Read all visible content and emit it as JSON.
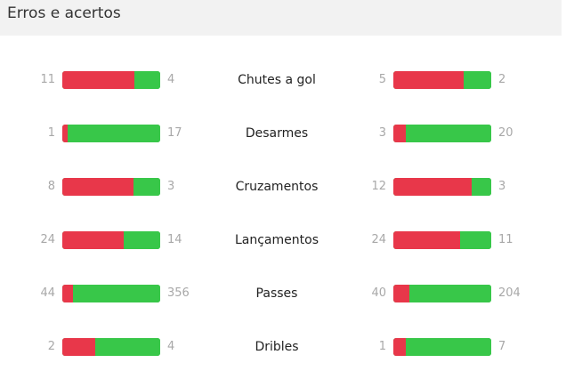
{
  "header": {
    "title": "Erros e acertos"
  },
  "colors": {
    "error": "#e8374a",
    "success": "#38c749"
  },
  "stats": [
    {
      "label": "Chutes a gol",
      "left": {
        "errors": "11",
        "hits": "4"
      },
      "right": {
        "errors": "5",
        "hits": "2"
      }
    },
    {
      "label": "Desarmes",
      "left": {
        "errors": "1",
        "hits": "17"
      },
      "right": {
        "errors": "3",
        "hits": "20"
      }
    },
    {
      "label": "Cruzamentos",
      "left": {
        "errors": "8",
        "hits": "3"
      },
      "right": {
        "errors": "12",
        "hits": "3"
      }
    },
    {
      "label": "Lançamentos",
      "left": {
        "errors": "24",
        "hits": "14"
      },
      "right": {
        "errors": "24",
        "hits": "11"
      }
    },
    {
      "label": "Passes",
      "left": {
        "errors": "44",
        "hits": "356"
      },
      "right": {
        "errors": "40",
        "hits": "204"
      }
    },
    {
      "label": "Dribles",
      "left": {
        "errors": "2",
        "hits": "4"
      },
      "right": {
        "errors": "1",
        "hits": "7"
      }
    }
  ]
}
